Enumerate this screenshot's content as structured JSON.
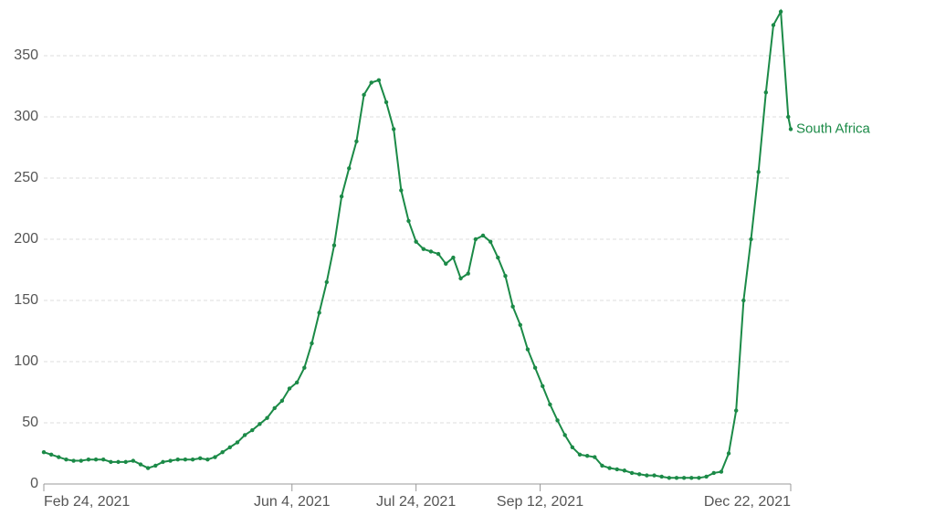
{
  "chart_data": {
    "type": "line",
    "x": [
      "2021-02-24",
      "2021-02-27",
      "2021-03-02",
      "2021-03-05",
      "2021-03-08",
      "2021-03-11",
      "2021-03-14",
      "2021-03-17",
      "2021-03-20",
      "2021-03-23",
      "2021-03-26",
      "2021-03-29",
      "2021-04-01",
      "2021-04-04",
      "2021-04-07",
      "2021-04-10",
      "2021-04-13",
      "2021-04-16",
      "2021-04-19",
      "2021-04-22",
      "2021-04-25",
      "2021-04-28",
      "2021-05-01",
      "2021-05-04",
      "2021-05-07",
      "2021-05-10",
      "2021-05-13",
      "2021-05-16",
      "2021-05-19",
      "2021-05-22",
      "2021-05-25",
      "2021-05-28",
      "2021-05-31",
      "2021-06-03",
      "2021-06-06",
      "2021-06-09",
      "2021-06-12",
      "2021-06-15",
      "2021-06-18",
      "2021-06-21",
      "2021-06-24",
      "2021-06-27",
      "2021-06-30",
      "2021-07-03",
      "2021-07-06",
      "2021-07-09",
      "2021-07-12",
      "2021-07-15",
      "2021-07-18",
      "2021-07-21",
      "2021-07-24",
      "2021-07-27",
      "2021-07-30",
      "2021-08-02",
      "2021-08-05",
      "2021-08-08",
      "2021-08-11",
      "2021-08-14",
      "2021-08-17",
      "2021-08-20",
      "2021-08-23",
      "2021-08-26",
      "2021-08-29",
      "2021-09-01",
      "2021-09-04",
      "2021-09-07",
      "2021-09-10",
      "2021-09-13",
      "2021-09-16",
      "2021-09-19",
      "2021-09-22",
      "2021-09-25",
      "2021-09-28",
      "2021-10-01",
      "2021-10-04",
      "2021-10-07",
      "2021-10-10",
      "2021-10-13",
      "2021-10-16",
      "2021-10-19",
      "2021-10-22",
      "2021-10-25",
      "2021-10-28",
      "2021-10-31",
      "2021-11-03",
      "2021-11-06",
      "2021-11-09",
      "2021-11-12",
      "2021-11-15",
      "2021-11-18",
      "2021-11-21",
      "2021-11-24",
      "2021-11-27",
      "2021-11-30",
      "2021-12-03",
      "2021-12-06",
      "2021-12-09",
      "2021-12-12",
      "2021-12-15",
      "2021-12-18",
      "2021-12-21",
      "2021-12-22"
    ],
    "series": [
      {
        "name": "South Africa",
        "color": "#1b8a47",
        "values": [
          26,
          24,
          22,
          20,
          19,
          19,
          20,
          20,
          20,
          18,
          18,
          18,
          19,
          16,
          13,
          15,
          18,
          19,
          20,
          20,
          20,
          21,
          20,
          22,
          26,
          30,
          34,
          40,
          44,
          49,
          54,
          62,
          68,
          78,
          83,
          95,
          115,
          140,
          165,
          195,
          235,
          258,
          280,
          318,
          328,
          330,
          312,
          290,
          240,
          215,
          198,
          192,
          190,
          188,
          180,
          185,
          168,
          172,
          200,
          203,
          198,
          185,
          170,
          145,
          130,
          110,
          95,
          80,
          65,
          52,
          40,
          30,
          24,
          23,
          22,
          15,
          13,
          12,
          11,
          9,
          8,
          7,
          7,
          6,
          5,
          5,
          5,
          5,
          5,
          6,
          9,
          10,
          25,
          60,
          150,
          200,
          255,
          320,
          375,
          386,
          300,
          290
        ]
      }
    ],
    "xlim": [
      "2021-02-24",
      "2021-12-22"
    ],
    "xticks": [
      {
        "value": "2021-02-24",
        "label": "Feb 24, 2021"
      },
      {
        "value": "2021-06-04",
        "label": "Jun 4, 2021"
      },
      {
        "value": "2021-07-24",
        "label": "Jul 24, 2021"
      },
      {
        "value": "2021-09-12",
        "label": "Sep 12, 2021"
      },
      {
        "value": "2021-12-22",
        "label": "Dec 22, 2021"
      }
    ],
    "ylim": [
      0,
      390
    ],
    "yticks": [
      0,
      50,
      100,
      150,
      200,
      250,
      300,
      350
    ],
    "grid": true
  }
}
